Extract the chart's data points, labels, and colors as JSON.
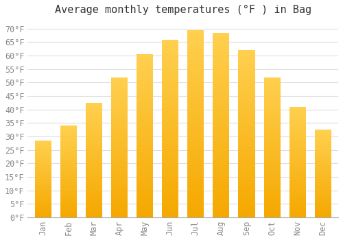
{
  "title": "Average monthly temperatures (°F ) in Bag",
  "months": [
    "Jan",
    "Feb",
    "Mar",
    "Apr",
    "May",
    "Jun",
    "Jul",
    "Aug",
    "Sep",
    "Oct",
    "Nov",
    "Dec"
  ],
  "values": [
    28.5,
    34.0,
    42.5,
    52.0,
    60.5,
    66.0,
    69.5,
    68.5,
    62.0,
    52.0,
    41.0,
    32.5
  ],
  "bar_color_bottom": "#F5A800",
  "bar_color_top": "#FFD050",
  "background_color": "#FFFFFF",
  "grid_color": "#DDDDDD",
  "title_color": "#333333",
  "tick_color": "#888888",
  "ylim": [
    0,
    73
  ],
  "yticks": [
    0,
    5,
    10,
    15,
    20,
    25,
    30,
    35,
    40,
    45,
    50,
    55,
    60,
    65,
    70
  ],
  "title_fontsize": 11,
  "tick_fontsize": 8.5
}
